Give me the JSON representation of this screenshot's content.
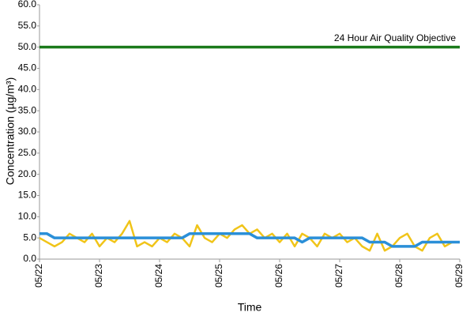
{
  "chart_data": {
    "type": "line",
    "ylabel": "Concentration (µg/m³)",
    "xlabel": "Time",
    "categories": [
      "05/22",
      null,
      null,
      null,
      null,
      null,
      null,
      null,
      "05/23",
      null,
      null,
      null,
      null,
      null,
      null,
      null,
      "05/24",
      null,
      null,
      null,
      null,
      null,
      null,
      null,
      "05/25",
      null,
      null,
      null,
      null,
      null,
      null,
      null,
      "05/26",
      null,
      null,
      null,
      null,
      null,
      null,
      null,
      "05/27",
      null,
      null,
      null,
      null,
      null,
      null,
      null,
      "05/28",
      null,
      null,
      null,
      null,
      null,
      null,
      null,
      "05/29"
    ],
    "series": [
      {
        "color": "#f0c419",
        "width": 2.5,
        "values": [
          5,
          4,
          3,
          4,
          6,
          5,
          4,
          6,
          3,
          5,
          4,
          6,
          9,
          3,
          4,
          3,
          5,
          4,
          6,
          5,
          3,
          8,
          5,
          4,
          6,
          5,
          7,
          8,
          6,
          7,
          5,
          6,
          4,
          6,
          3,
          6,
          5,
          3,
          6,
          5,
          6,
          4,
          5,
          3,
          2,
          6,
          2,
          3,
          5,
          6,
          3,
          2,
          5,
          6,
          3,
          4,
          4
        ]
      },
      {
        "color": "#2a8fd8",
        "width": 3.5,
        "values": [
          6,
          6,
          5,
          5,
          5,
          5,
          5,
          5,
          5,
          5,
          5,
          5,
          5,
          5,
          5,
          5,
          5,
          5,
          5,
          5,
          6,
          6,
          6,
          6,
          6,
          6,
          6,
          6,
          6,
          5,
          5,
          5,
          5,
          5,
          5,
          4,
          5,
          5,
          5,
          5,
          5,
          5,
          5,
          5,
          4,
          4,
          4,
          3,
          3,
          3,
          3,
          4,
          4,
          4,
          4,
          4,
          4
        ]
      }
    ],
    "reference_line": {
      "value": 50,
      "label": "24 Hour Air Quality Objective",
      "color": "#1a7a1a"
    },
    "ylim": [
      0,
      60
    ],
    "yticks": [
      {
        "value": 0,
        "label": "0.0"
      },
      {
        "value": 5,
        "label": "5.0"
      },
      {
        "value": 10,
        "label": "10.0"
      },
      {
        "value": 15,
        "label": "15.0"
      },
      {
        "value": 20,
        "label": "20.0"
      },
      {
        "value": 25,
        "label": "25.0"
      },
      {
        "value": 30,
        "label": "30.0"
      },
      {
        "value": 35,
        "label": "35.0"
      },
      {
        "value": 40,
        "label": "40.0"
      },
      {
        "value": 45,
        "label": "45.0"
      },
      {
        "value": 50,
        "label": "50.0"
      },
      {
        "value": 55,
        "label": "55.0"
      },
      {
        "value": 60,
        "label": "60.0"
      }
    ],
    "grid": false
  }
}
